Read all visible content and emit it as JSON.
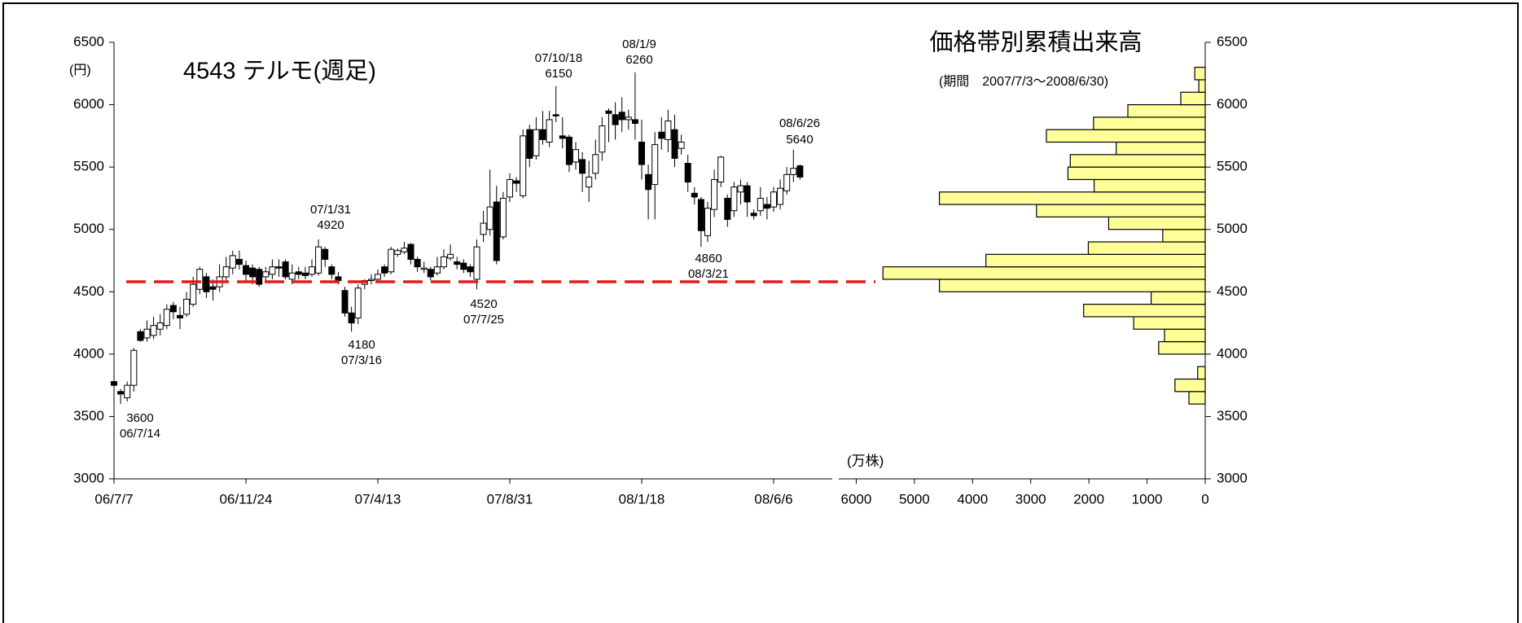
{
  "chart_data": [
    {
      "type": "candlestick",
      "title": "4543 テルモ(週足)",
      "y_label": "(円)",
      "categories": [
        "06/7/7",
        null,
        null,
        null,
        null,
        null,
        null,
        null,
        null,
        null,
        null,
        null,
        null,
        null,
        null,
        null,
        null,
        null,
        null,
        null,
        "06/11/24",
        null,
        null,
        null,
        null,
        null,
        null,
        null,
        null,
        null,
        null,
        null,
        null,
        null,
        null,
        null,
        null,
        null,
        null,
        null,
        "07/4/13",
        null,
        null,
        null,
        null,
        null,
        null,
        null,
        null,
        null,
        null,
        null,
        null,
        null,
        null,
        null,
        null,
        null,
        null,
        null,
        "07/8/31",
        null,
        null,
        null,
        null,
        null,
        null,
        null,
        null,
        null,
        null,
        null,
        null,
        null,
        null,
        null,
        null,
        null,
        null,
        null,
        "08/1/18",
        null,
        null,
        null,
        null,
        null,
        null,
        null,
        null,
        null,
        null,
        null,
        null,
        null,
        null,
        null,
        null,
        null,
        null,
        null,
        "08/6/6",
        null,
        null,
        null,
        null
      ],
      "open": [
        3780,
        3700,
        3650,
        3750,
        4180,
        4130,
        4150,
        4200,
        4230,
        4390,
        4310,
        4320,
        4400,
        4520,
        4620,
        4540,
        4540,
        4620,
        4690,
        4760,
        4710,
        4690,
        4680,
        4620,
        4640,
        4700,
        4740,
        4600,
        4660,
        4650,
        4640,
        4650,
        4840,
        4700,
        4620,
        4510,
        4330,
        4290,
        4560,
        4590,
        4600,
        4700,
        4660,
        4800,
        4820,
        4880,
        4760,
        4680,
        4680,
        4650,
        4700,
        4770,
        4740,
        4730,
        4700,
        4600,
        4960,
        5000,
        5220,
        4940,
        5260,
        5390,
        5270,
        5800,
        5590,
        5800,
        5700,
        5920,
        5750,
        5740,
        5540,
        5560,
        5340,
        5450,
        5620,
        5950,
        5920,
        5940,
        5880,
        5880,
        5700,
        5440,
        5360,
        5780,
        5720,
        5800,
        5650,
        5530,
        5290,
        5240,
        4950,
        5160,
        5380,
        5250,
        5150,
        5300,
        5350,
        5130,
        5150,
        5200,
        5180,
        5200,
        5310,
        5440,
        5510
      ],
      "high": [
        3800,
        3720,
        3780,
        4050,
        4200,
        4270,
        4300,
        4320,
        4400,
        4420,
        4380,
        4500,
        4620,
        4700,
        4650,
        4600,
        4720,
        4780,
        4830,
        4830,
        4750,
        4720,
        4700,
        4700,
        4760,
        4760,
        4760,
        4720,
        4700,
        4700,
        4760,
        4920,
        4860,
        4720,
        4660,
        4540,
        4380,
        4560,
        4600,
        4640,
        4680,
        4720,
        4860,
        4850,
        4900,
        4890,
        4780,
        4740,
        4700,
        4780,
        4840,
        4880,
        4780,
        4760,
        4720,
        4920,
        5150,
        5480,
        5350,
        5300,
        5450,
        5420,
        5800,
        5840,
        5900,
        5950,
        5950,
        6150,
        5900,
        5760,
        5700,
        5620,
        5550,
        5720,
        5900,
        5970,
        6020,
        6060,
        5960,
        6260,
        5880,
        5520,
        5780,
        5900,
        5960,
        5920,
        5760,
        5600,
        5340,
        5260,
        5220,
        5480,
        5590,
        5280,
        5380,
        5400,
        5380,
        5160,
        5340,
        5260,
        5340,
        5400,
        5500,
        5640,
        5520
      ],
      "low": [
        3720,
        3600,
        3620,
        3700,
        4100,
        4100,
        4120,
        4150,
        4200,
        4280,
        4200,
        4300,
        4380,
        4480,
        4450,
        4430,
        4500,
        4580,
        4640,
        4680,
        4580,
        4560,
        4540,
        4580,
        4600,
        4620,
        4600,
        4560,
        4600,
        4600,
        4620,
        4630,
        4700,
        4600,
        4560,
        4300,
        4180,
        4240,
        4520,
        4560,
        4580,
        4620,
        4640,
        4780,
        4800,
        4720,
        4660,
        4650,
        4590,
        4630,
        4680,
        4750,
        4680,
        4650,
        4620,
        4520,
        4900,
        4950,
        4720,
        4920,
        5220,
        5300,
        5250,
        5500,
        5560,
        5680,
        5660,
        5860,
        5650,
        5460,
        5480,
        5300,
        5220,
        5400,
        5550,
        5700,
        5720,
        5780,
        5800,
        5720,
        5400,
        5080,
        5080,
        5640,
        5620,
        5500,
        5600,
        5300,
        5200,
        4860,
        4900,
        5100,
        5340,
        5020,
        5100,
        5200,
        5100,
        5080,
        5110,
        5080,
        5140,
        5160,
        5280,
        5380,
        5400
      ],
      "close": [
        3750,
        3680,
        3750,
        4030,
        4110,
        4200,
        4230,
        4250,
        4360,
        4340,
        4290,
        4440,
        4560,
        4680,
        4500,
        4520,
        4620,
        4700,
        4790,
        4720,
        4640,
        4620,
        4560,
        4660,
        4700,
        4690,
        4620,
        4650,
        4640,
        4630,
        4700,
        4860,
        4760,
        4640,
        4590,
        4330,
        4250,
        4530,
        4590,
        4600,
        4640,
        4650,
        4840,
        4830,
        4850,
        4760,
        4700,
        4690,
        4620,
        4700,
        4780,
        4800,
        4720,
        4680,
        4660,
        4860,
        5050,
        5180,
        4750,
        5250,
        5400,
        5370,
        5750,
        5570,
        5800,
        5720,
        5880,
        5910,
        5730,
        5520,
        5640,
        5450,
        5420,
        5600,
        5830,
        5930,
        5840,
        5880,
        5900,
        5850,
        5520,
        5320,
        5680,
        5730,
        5870,
        5570,
        5700,
        5380,
        5260,
        4990,
        5170,
        5400,
        5580,
        5080,
        5340,
        5350,
        5220,
        5110,
        5250,
        5170,
        5300,
        5330,
        5440,
        5490,
        5420
      ],
      "ylim": [
        3000,
        6500
      ],
      "yticks": [
        3000,
        3500,
        4000,
        4500,
        5000,
        5500,
        6000,
        6500
      ],
      "up_color": "#ffffff",
      "down_color": "#000000",
      "reference_line": {
        "value": 4580,
        "color": "#e41a1c"
      },
      "annotations": [
        {
          "date": "06/7/14",
          "value": 3600
        },
        {
          "date": "07/3/16",
          "value": 4180
        },
        {
          "date": "07/1/31",
          "value": 4920
        },
        {
          "date": "07/7/25",
          "value": 4520
        },
        {
          "date": "07/10/18",
          "value": 6150
        },
        {
          "date": "08/1/9",
          "value": 6260
        },
        {
          "date": "08/3/21",
          "value": 4860
        },
        {
          "date": "08/6/26",
          "value": 5640
        }
      ]
    },
    {
      "type": "histogram",
      "orientation": "horizontal",
      "title": "価格帯別累積出来高",
      "subtitle": "(期間　2007/7/3～2008/6/30)",
      "x_label": "(万株)",
      "bins": [
        3600,
        3700,
        3800,
        3900,
        4000,
        4100,
        4200,
        4300,
        4400,
        4500,
        4600,
        4700,
        4800,
        4900,
        5000,
        5100,
        5200,
        5300,
        5400,
        5500,
        5600,
        5700,
        5800,
        5900,
        6000,
        6100,
        6200,
        6300
      ],
      "counts": [
        280,
        520,
        130,
        0,
        800,
        700,
        1230,
        2090,
        930,
        4570,
        5540,
        3770,
        2010,
        730,
        1660,
        2900,
        4570,
        1910,
        2360,
        2320,
        1530,
        2730,
        1920,
        1330,
        420,
        110,
        180
      ],
      "color": "#ffff99",
      "xlim": [
        6300,
        0
      ],
      "xticks": [
        6000,
        5000,
        4000,
        3000,
        2000,
        1000,
        0
      ],
      "ylim": [
        3000,
        6500
      ],
      "yticks": [
        3000,
        3500,
        4000,
        4500,
        5000,
        5500,
        6000,
        6500
      ]
    }
  ]
}
